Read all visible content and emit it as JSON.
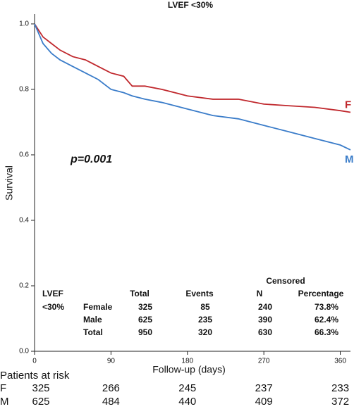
{
  "chart_data": {
    "type": "line",
    "title": "LVEF <30%",
    "x_label": "Follow-up (days)",
    "y_label": "Survival",
    "annotation": "p=0.001",
    "x": [
      0,
      10,
      20,
      30,
      45,
      60,
      75,
      90,
      105,
      115,
      130,
      150,
      180,
      210,
      240,
      270,
      300,
      330,
      360,
      372
    ],
    "series": [
      {
        "name": "F",
        "color": "#c0282d",
        "values": [
          1.0,
          0.96,
          0.94,
          0.92,
          0.9,
          0.89,
          0.87,
          0.85,
          0.84,
          0.81,
          0.81,
          0.8,
          0.78,
          0.77,
          0.77,
          0.755,
          0.75,
          0.745,
          0.735,
          0.73
        ]
      },
      {
        "name": "M",
        "color": "#3a7cc9",
        "values": [
          1.0,
          0.94,
          0.91,
          0.89,
          0.87,
          0.85,
          0.83,
          0.8,
          0.79,
          0.78,
          0.77,
          0.76,
          0.74,
          0.72,
          0.71,
          0.69,
          0.67,
          0.65,
          0.63,
          0.615
        ]
      }
    ],
    "xlim": [
      0,
      372
    ],
    "ylim": [
      0,
      1.03
    ],
    "xticks": [
      0,
      90,
      180,
      270,
      360
    ],
    "yticks": [
      {
        "value": 0,
        "label": "0.0"
      },
      0.2,
      0.4,
      0.6,
      0.8,
      {
        "value": 1,
        "label": "1.0"
      }
    ],
    "table": {
      "censored": "Censored",
      "group": [
        "LVEF",
        "<30%"
      ],
      "columns": [
        "Total",
        "Events",
        "N",
        "Percentage"
      ],
      "rows": [
        [
          "Female",
          325,
          85,
          240,
          "73.8%"
        ],
        [
          "Male",
          625,
          235,
          390,
          "62.4%"
        ],
        [
          "Total",
          950,
          320,
          630,
          "66.3%"
        ]
      ]
    },
    "risk_table": {
      "title": "Patients at risk",
      "x": [
        0,
        90,
        180,
        270,
        360
      ],
      "rows": [
        {
          "name": "F",
          "values": [
            325,
            266,
            245,
            237,
            233
          ]
        },
        {
          "name": "M",
          "values": [
            625,
            484,
            440,
            409,
            372
          ]
        }
      ]
    }
  }
}
